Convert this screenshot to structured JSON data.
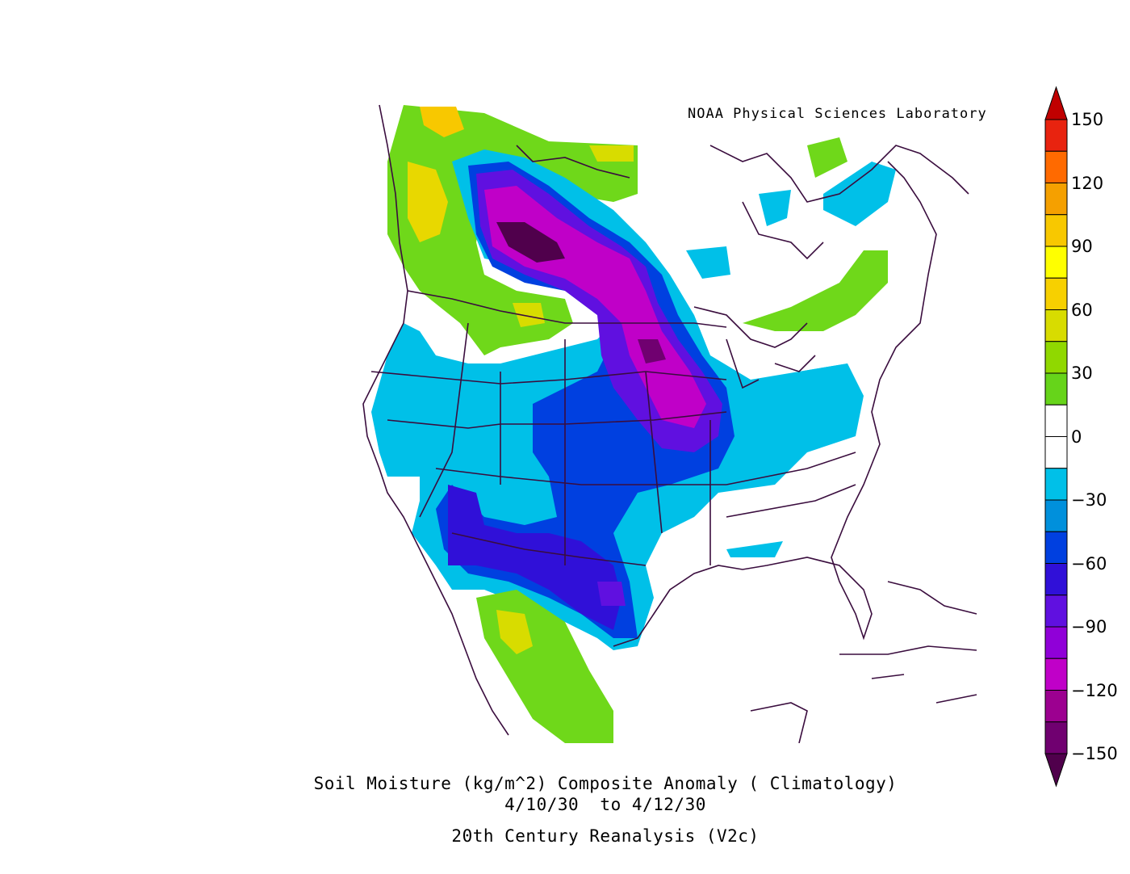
{
  "credit": "NOAA Physical Sciences Laboratory",
  "caption": {
    "line1": "Soil Moisture (kg/m^2) Composite Anomaly ( Climatology)",
    "line2": "4/10/30  to 4/12/30",
    "line3": "20th Century Reanalysis (V2c)"
  },
  "colorbar": {
    "labels": [
      "150",
      "120",
      "90",
      "60",
      "30",
      "0",
      "−30",
      "−60",
      "−90",
      "−120",
      "−150"
    ],
    "colors_top_to_bottom": [
      "#e8230f",
      "#ff6a00",
      "#f5a000",
      "#f8c800",
      "#ffff00",
      "#f7d000",
      "#d8dc00",
      "#90d800",
      "#66d41a",
      "#ffffff",
      "#ffffff",
      "#00c0e8",
      "#0090dc",
      "#0040e0",
      "#3010d8",
      "#6010e0",
      "#9000d8",
      "#c000c8",
      "#9c0090",
      "#700070"
    ],
    "arrow_top_color": "#c00000",
    "arrow_bottom_color": "#50004c"
  }
}
